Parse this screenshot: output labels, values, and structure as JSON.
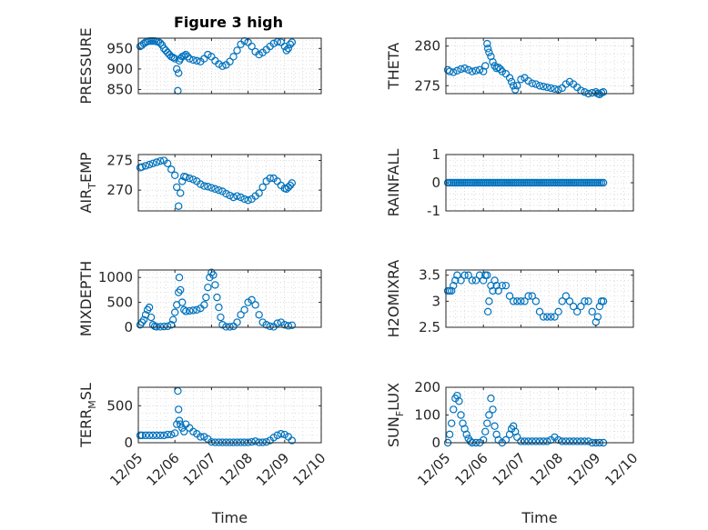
{
  "figure": {
    "title": "Figure 3 high"
  },
  "colors": {
    "marker": "#0072BD",
    "axis": "#262626",
    "grid": "#c8c8c8"
  },
  "time_tick_labels": [
    "12/05",
    "12/06",
    "12/07",
    "12/08",
    "12/09",
    "12/10"
  ],
  "chart_data": [
    {
      "type": "scatter",
      "ylabel": "PRESSURE",
      "xlabel": "",
      "xlim": [
        0,
        5
      ],
      "ylim": [
        840,
        975
      ],
      "yticks": [
        850,
        900,
        950
      ],
      "grid": true,
      "marker": "circle",
      "x": [
        0.05,
        0.1,
        0.15,
        0.2,
        0.25,
        0.3,
        0.35,
        0.4,
        0.45,
        0.5,
        0.55,
        0.6,
        0.65,
        0.7,
        0.75,
        0.8,
        0.85,
        0.9,
        0.95,
        1.0,
        1.05,
        1.08,
        1.1,
        1.12,
        1.15,
        1.2,
        1.25,
        1.3,
        1.35,
        1.4,
        1.5,
        1.6,
        1.7,
        1.8,
        1.9,
        2.0,
        2.1,
        2.2,
        2.3,
        2.4,
        2.5,
        2.6,
        2.7,
        2.8,
        2.9,
        3.0,
        3.1,
        3.2,
        3.3,
        3.4,
        3.5,
        3.6,
        3.7,
        3.8,
        3.9,
        4.0,
        4.05,
        4.1,
        4.15,
        4.2
      ],
      "values": [
        955,
        958,
        962,
        965,
        967,
        968,
        968,
        968,
        968,
        967,
        966,
        963,
        958,
        950,
        945,
        940,
        935,
        930,
        928,
        925,
        900,
        847,
        890,
        920,
        925,
        930,
        932,
        935,
        930,
        925,
        922,
        920,
        918,
        925,
        935,
        930,
        920,
        912,
        907,
        910,
        918,
        930,
        945,
        960,
        968,
        965,
        955,
        942,
        935,
        940,
        947,
        955,
        962,
        966,
        965,
        955,
        945,
        950,
        960,
        965
      ]
    },
    {
      "type": "scatter",
      "ylabel": "THETA",
      "xlabel": "",
      "xlim": [
        0,
        5
      ],
      "ylim": [
        274,
        281
      ],
      "yticks": [
        275,
        280
      ],
      "grid": true,
      "marker": "circle",
      "x": [
        0.05,
        0.1,
        0.2,
        0.3,
        0.4,
        0.5,
        0.6,
        0.7,
        0.8,
        0.9,
        1.0,
        1.05,
        1.1,
        1.12,
        1.15,
        1.2,
        1.25,
        1.3,
        1.35,
        1.4,
        1.45,
        1.5,
        1.6,
        1.7,
        1.75,
        1.8,
        1.85,
        1.9,
        2.0,
        2.1,
        2.2,
        2.3,
        2.4,
        2.5,
        2.6,
        2.7,
        2.8,
        2.9,
        3.0,
        3.1,
        3.2,
        3.3,
        3.4,
        3.5,
        3.6,
        3.7,
        3.8,
        3.9,
        4.0,
        4.05,
        4.1,
        4.15,
        4.2
      ],
      "values": [
        277,
        276.8,
        276.7,
        276.9,
        277.1,
        277.2,
        277,
        276.8,
        276.9,
        277,
        276.8,
        277.5,
        280.3,
        279.7,
        279.2,
        278.7,
        278,
        277.5,
        277.2,
        277.3,
        277.1,
        276.8,
        276.5,
        276,
        275.5,
        275,
        274.5,
        275,
        275.8,
        276,
        275.6,
        275.3,
        275.2,
        275,
        274.9,
        274.8,
        274.7,
        274.6,
        274.5,
        274.7,
        275.2,
        275.5,
        275.2,
        274.8,
        274.4,
        274.2,
        274,
        274.1,
        274.2,
        274,
        273.9,
        274.1,
        274.2
      ]
    },
    {
      "type": "scatter",
      "ylabel": "AIR_TEMP",
      "xlabel": "",
      "xlim": [
        0,
        5
      ],
      "ylim": [
        266.5,
        276
      ],
      "yticks": [
        270,
        275
      ],
      "grid": true,
      "marker": "circle",
      "x": [
        0.05,
        0.1,
        0.2,
        0.3,
        0.4,
        0.5,
        0.6,
        0.7,
        0.8,
        0.9,
        1.0,
        1.05,
        1.1,
        1.15,
        1.2,
        1.25,
        1.3,
        1.4,
        1.5,
        1.6,
        1.7,
        1.8,
        1.9,
        2.0,
        2.1,
        2.2,
        2.3,
        2.4,
        2.5,
        2.6,
        2.7,
        2.8,
        2.9,
        3.0,
        3.1,
        3.2,
        3.3,
        3.4,
        3.5,
        3.6,
        3.7,
        3.8,
        3.9,
        4.0,
        4.05,
        4.1,
        4.15,
        4.2
      ],
      "values": [
        273.8,
        273.9,
        274.1,
        274.3,
        274.5,
        274.7,
        274.9,
        275,
        274.5,
        273.5,
        272.5,
        270.5,
        267.3,
        269.5,
        271.5,
        272.3,
        272.2,
        272,
        271.8,
        271.5,
        271,
        270.7,
        270.6,
        270.4,
        270.2,
        270,
        269.8,
        269.4,
        269.1,
        268.8,
        269,
        268.8,
        268.5,
        268.3,
        268.5,
        269,
        269.5,
        270.5,
        271.5,
        272,
        272,
        271.5,
        270.8,
        270.3,
        270.2,
        270.5,
        270.8,
        271.2
      ]
    },
    {
      "type": "scatter",
      "ylabel": "RAINFALL",
      "xlabel": "",
      "xlim": [
        0,
        5
      ],
      "ylim": [
        -1,
        1
      ],
      "yticks": [
        -1,
        0,
        1
      ],
      "grid": true,
      "marker": "circle",
      "x": [
        0.05,
        0.1,
        0.15,
        0.2,
        0.25,
        0.3,
        0.35,
        0.4,
        0.45,
        0.5,
        0.55,
        0.6,
        0.65,
        0.7,
        0.75,
        0.8,
        0.85,
        0.9,
        0.95,
        1.0,
        1.05,
        1.1,
        1.15,
        1.2,
        1.25,
        1.3,
        1.35,
        1.4,
        1.45,
        1.5,
        1.55,
        1.6,
        1.65,
        1.7,
        1.75,
        1.8,
        1.85,
        1.9,
        1.95,
        2.0,
        2.05,
        2.1,
        2.15,
        2.2,
        2.25,
        2.3,
        2.35,
        2.4,
        2.45,
        2.5,
        2.55,
        2.6,
        2.65,
        2.7,
        2.75,
        2.8,
        2.85,
        2.9,
        2.95,
        3.0,
        3.05,
        3.1,
        3.15,
        3.2,
        3.25,
        3.3,
        3.35,
        3.4,
        3.45,
        3.5,
        3.55,
        3.6,
        3.65,
        3.7,
        3.75,
        3.8,
        3.85,
        3.9,
        3.95,
        4.0,
        4.05,
        4.1,
        4.15,
        4.2
      ],
      "values": [
        0,
        0,
        0,
        0,
        0,
        0,
        0,
        0,
        0,
        0,
        0,
        0,
        0,
        0,
        0,
        0,
        0,
        0,
        0,
        0,
        0,
        0,
        0,
        0,
        0,
        0,
        0,
        0,
        0,
        0,
        0,
        0,
        0,
        0,
        0,
        0,
        0,
        0,
        0,
        0,
        0,
        0,
        0,
        0,
        0,
        0,
        0,
        0,
        0,
        0,
        0,
        0,
        0,
        0,
        0,
        0,
        0,
        0,
        0,
        0,
        0,
        0,
        0,
        0,
        0,
        0,
        0,
        0,
        0,
        0,
        0,
        0,
        0,
        0,
        0,
        0,
        0,
        0,
        0,
        0,
        0,
        0,
        0,
        0
      ]
    },
    {
      "type": "scatter",
      "ylabel": "MIXDEPTH",
      "xlabel": "",
      "xlim": [
        0,
        5
      ],
      "ylim": [
        0,
        1150
      ],
      "yticks": [
        0,
        500,
        1000
      ],
      "grid": true,
      "marker": "circle",
      "x": [
        0.05,
        0.1,
        0.15,
        0.2,
        0.25,
        0.3,
        0.35,
        0.4,
        0.45,
        0.5,
        0.6,
        0.7,
        0.8,
        0.9,
        0.95,
        1.0,
        1.05,
        1.1,
        1.12,
        1.15,
        1.2,
        1.25,
        1.3,
        1.4,
        1.5,
        1.6,
        1.7,
        1.8,
        1.85,
        1.9,
        1.95,
        2.0,
        2.05,
        2.1,
        2.15,
        2.2,
        2.25,
        2.3,
        2.4,
        2.5,
        2.6,
        2.7,
        2.8,
        2.9,
        3.0,
        3.1,
        3.2,
        3.3,
        3.4,
        3.5,
        3.6,
        3.7,
        3.8,
        3.9,
        4.0,
        4.1,
        4.2
      ],
      "values": [
        50,
        100,
        150,
        250,
        350,
        400,
        200,
        50,
        20,
        10,
        10,
        15,
        20,
        50,
        150,
        300,
        450,
        700,
        1000,
        750,
        500,
        350,
        320,
        330,
        340,
        350,
        380,
        450,
        600,
        800,
        1000,
        1100,
        1050,
        850,
        600,
        400,
        200,
        50,
        10,
        10,
        20,
        100,
        250,
        350,
        500,
        550,
        450,
        250,
        100,
        50,
        20,
        10,
        80,
        100,
        50,
        30,
        40
      ]
    },
    {
      "type": "scatter",
      "ylabel": "H2OMIXRA",
      "xlabel": "",
      "xlim": [
        0,
        5
      ],
      "ylim": [
        2.5,
        3.6
      ],
      "yticks": [
        2.5,
        3,
        3.5
      ],
      "grid": true,
      "marker": "circle",
      "x": [
        0.05,
        0.1,
        0.15,
        0.2,
        0.25,
        0.3,
        0.4,
        0.5,
        0.6,
        0.7,
        0.8,
        0.9,
        1.0,
        1.05,
        1.1,
        1.12,
        1.15,
        1.2,
        1.25,
        1.3,
        1.35,
        1.4,
        1.5,
        1.6,
        1.7,
        1.8,
        1.9,
        2.0,
        2.1,
        2.2,
        2.3,
        2.4,
        2.5,
        2.6,
        2.7,
        2.8,
        2.9,
        3.0,
        3.1,
        3.2,
        3.3,
        3.4,
        3.5,
        3.6,
        3.7,
        3.8,
        3.9,
        4.0,
        4.05,
        4.1,
        4.15,
        4.2
      ],
      "values": [
        3.2,
        3.2,
        3.2,
        3.3,
        3.4,
        3.5,
        3.4,
        3.5,
        3.5,
        3.4,
        3.4,
        3.5,
        3.4,
        3.5,
        3.5,
        2.8,
        3.0,
        3.3,
        3.2,
        3.4,
        3.3,
        3.2,
        3.3,
        3.3,
        3.1,
        3.0,
        3.0,
        3.0,
        3.0,
        3.1,
        3.1,
        3.0,
        2.8,
        2.7,
        2.7,
        2.7,
        2.7,
        2.8,
        3.0,
        3.1,
        3.0,
        2.9,
        2.8,
        2.9,
        3.0,
        3.0,
        2.8,
        2.6,
        2.7,
        2.9,
        3.0,
        3.0
      ]
    },
    {
      "type": "scatter",
      "ylabel": "TERR_MSL",
      "xlabel": "Time",
      "xlim": [
        0,
        5
      ],
      "ylim": [
        0,
        750
      ],
      "yticks": [
        0,
        500
      ],
      "grid": true,
      "marker": "circle",
      "x": [
        0.05,
        0.1,
        0.2,
        0.3,
        0.4,
        0.5,
        0.6,
        0.7,
        0.8,
        0.9,
        1.0,
        1.05,
        1.08,
        1.1,
        1.12,
        1.15,
        1.2,
        1.25,
        1.3,
        1.4,
        1.5,
        1.6,
        1.7,
        1.8,
        1.9,
        2.0,
        2.1,
        2.2,
        2.3,
        2.4,
        2.5,
        2.6,
        2.7,
        2.8,
        2.9,
        3.0,
        3.1,
        3.2,
        3.3,
        3.4,
        3.5,
        3.6,
        3.7,
        3.8,
        3.9,
        4.0,
        4.1,
        4.2
      ],
      "values": [
        100,
        100,
        100,
        100,
        100,
        100,
        100,
        100,
        110,
        110,
        130,
        250,
        700,
        450,
        300,
        250,
        200,
        150,
        250,
        200,
        150,
        120,
        80,
        80,
        50,
        10,
        5,
        5,
        5,
        5,
        5,
        5,
        5,
        5,
        5,
        5,
        10,
        20,
        5,
        5,
        10,
        30,
        70,
        100,
        120,
        110,
        80,
        30
      ]
    },
    {
      "type": "scatter",
      "ylabel": "SUN_FLUX",
      "xlabel": "Time",
      "xlim": [
        0,
        5
      ],
      "ylim": [
        0,
        200
      ],
      "yticks": [
        0,
        100,
        200
      ],
      "grid": true,
      "marker": "circle",
      "x": [
        0.05,
        0.1,
        0.15,
        0.2,
        0.25,
        0.3,
        0.35,
        0.4,
        0.45,
        0.5,
        0.55,
        0.6,
        0.65,
        0.7,
        0.8,
        0.9,
        1.0,
        1.05,
        1.1,
        1.15,
        1.2,
        1.25,
        1.3,
        1.35,
        1.4,
        1.5,
        1.6,
        1.7,
        1.75,
        1.8,
        1.85,
        1.9,
        2.0,
        2.1,
        2.2,
        2.3,
        2.4,
        2.5,
        2.6,
        2.7,
        2.8,
        2.9,
        3.0,
        3.1,
        3.2,
        3.3,
        3.4,
        3.5,
        3.6,
        3.7,
        3.8,
        3.9,
        4.0,
        4.1,
        4.2
      ],
      "values": [
        0,
        30,
        70,
        120,
        160,
        170,
        150,
        100,
        70,
        50,
        30,
        15,
        5,
        0,
        0,
        0,
        10,
        40,
        70,
        100,
        160,
        120,
        60,
        30,
        10,
        0,
        10,
        30,
        50,
        60,
        40,
        20,
        5,
        5,
        5,
        5,
        5,
        5,
        5,
        5,
        10,
        20,
        10,
        5,
        5,
        5,
        5,
        5,
        5,
        5,
        5,
        0,
        0,
        0,
        0
      ]
    }
  ]
}
